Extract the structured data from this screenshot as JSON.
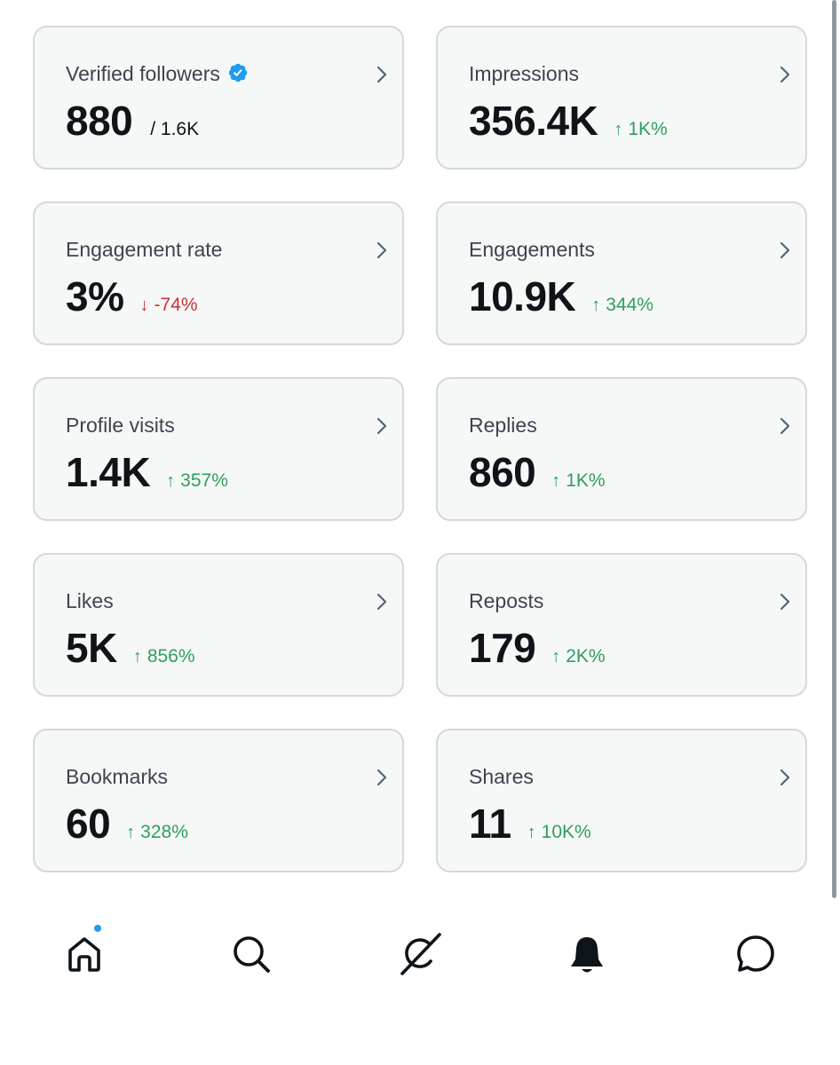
{
  "cards": [
    {
      "label": "Verified followers",
      "value": "880",
      "sub": "/ 1.6K",
      "verified_icon": "verified-badge-icon"
    },
    {
      "label": "Impressions",
      "value": "356.4K",
      "delta_arrow": "↑",
      "delta": "1K%",
      "trend": "up"
    },
    {
      "label": "Engagement rate",
      "value": "3%",
      "delta_arrow": "↓",
      "delta": "-74%",
      "trend": "down"
    },
    {
      "label": "Engagements",
      "value": "10.9K",
      "delta_arrow": "↑",
      "delta": "344%",
      "trend": "up"
    },
    {
      "label": "Profile visits",
      "value": "1.4K",
      "delta_arrow": "↑",
      "delta": "357%",
      "trend": "up"
    },
    {
      "label": "Replies",
      "value": "860",
      "delta_arrow": "↑",
      "delta": "1K%",
      "trend": "up"
    },
    {
      "label": "Likes",
      "value": "5K",
      "delta_arrow": "↑",
      "delta": "856%",
      "trend": "up"
    },
    {
      "label": "Reposts",
      "value": "179",
      "delta_arrow": "↑",
      "delta": "2K%",
      "trend": "up"
    },
    {
      "label": "Bookmarks",
      "value": "60",
      "delta_arrow": "↑",
      "delta": "328%",
      "trend": "up"
    },
    {
      "label": "Shares",
      "value": "11",
      "delta_arrow": "↑",
      "delta": "10K%",
      "trend": "up"
    }
  ],
  "colors": {
    "up": "#2e9e5f",
    "down": "#c8323a",
    "accent": "#1d9bf0",
    "card_bg": "#f6f8f8",
    "card_border": "#d3d9de"
  },
  "tabbar": {
    "items": [
      {
        "name": "home",
        "icon": "home-icon",
        "notification_dot": true
      },
      {
        "name": "search",
        "icon": "search-icon"
      },
      {
        "name": "grok",
        "icon": "grok-icon"
      },
      {
        "name": "notifications",
        "icon": "bell-icon"
      },
      {
        "name": "messages",
        "icon": "message-icon"
      }
    ]
  }
}
